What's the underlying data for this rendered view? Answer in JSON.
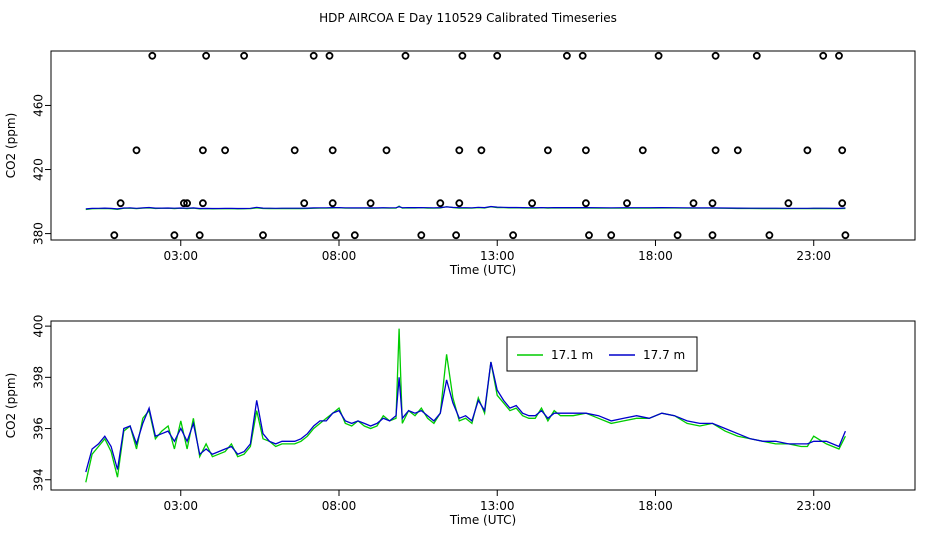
{
  "title": "HDP AIRCOA E  Day 110529  Calibrated Timeseries",
  "chart_data": [
    {
      "type": "scatter",
      "name": "flag-panel",
      "xlabel": "Time (UTC)",
      "ylabel": "CO2 (ppm)",
      "xlim": [
        -1.1,
        26.2
      ],
      "ylim": [
        376,
        494
      ],
      "xticks": [
        3,
        8,
        13,
        18,
        23
      ],
      "xtick_labels": [
        "03:00",
        "08:00",
        "13:00",
        "18:00",
        "23:00"
      ],
      "yticks": [
        380,
        420,
        460
      ],
      "ytick_labels": [
        "380",
        "420",
        "460"
      ],
      "points": [
        [
          0.9,
          379
        ],
        [
          1.1,
          399
        ],
        [
          1.6,
          432
        ],
        [
          2.1,
          491
        ],
        [
          2.8,
          379
        ],
        [
          3.1,
          399
        ],
        [
          3.2,
          399
        ],
        [
          3.6,
          379
        ],
        [
          3.7,
          432
        ],
        [
          3.7,
          399
        ],
        [
          3.8,
          491
        ],
        [
          4.4,
          432
        ],
        [
          5.0,
          491
        ],
        [
          5.6,
          379
        ],
        [
          6.6,
          432
        ],
        [
          6.9,
          399
        ],
        [
          7.2,
          491
        ],
        [
          7.7,
          491
        ],
        [
          7.8,
          432
        ],
        [
          7.8,
          399
        ],
        [
          7.9,
          379
        ],
        [
          8.5,
          379
        ],
        [
          9.0,
          399
        ],
        [
          9.5,
          432
        ],
        [
          10.1,
          491
        ],
        [
          10.6,
          379
        ],
        [
          11.2,
          399
        ],
        [
          11.7,
          379
        ],
        [
          11.8,
          399
        ],
        [
          11.8,
          432
        ],
        [
          11.9,
          491
        ],
        [
          12.5,
          432
        ],
        [
          13.0,
          491
        ],
        [
          13.5,
          379
        ],
        [
          14.1,
          399
        ],
        [
          14.6,
          432
        ],
        [
          15.2,
          491
        ],
        [
          15.7,
          491
        ],
        [
          15.8,
          432
        ],
        [
          15.8,
          399
        ],
        [
          15.9,
          379
        ],
        [
          16.6,
          379
        ],
        [
          17.1,
          399
        ],
        [
          17.6,
          432
        ],
        [
          18.1,
          491
        ],
        [
          18.7,
          379
        ],
        [
          19.2,
          399
        ],
        [
          19.8,
          379
        ],
        [
          19.8,
          399
        ],
        [
          19.9,
          432
        ],
        [
          19.9,
          491
        ],
        [
          20.6,
          432
        ],
        [
          21.2,
          491
        ],
        [
          21.6,
          379
        ],
        [
          22.2,
          399
        ],
        [
          22.8,
          432
        ],
        [
          23.3,
          491
        ],
        [
          23.8,
          491
        ],
        [
          23.9,
          432
        ],
        [
          23.9,
          399
        ],
        [
          24.0,
          379
        ]
      ],
      "line_level": 396
    },
    {
      "type": "line",
      "name": "timeseries-panel",
      "xlabel": "Time (UTC)",
      "ylabel": "CO2 (ppm)",
      "xlim": [
        -1.1,
        26.2
      ],
      "ylim": [
        393.6,
        400.2
      ],
      "xticks": [
        3,
        8,
        13,
        18,
        23
      ],
      "xtick_labels": [
        "03:00",
        "08:00",
        "13:00",
        "18:00",
        "23:00"
      ],
      "yticks": [
        394,
        396,
        398,
        400
      ],
      "ytick_labels": [
        "394",
        "396",
        "398",
        "400"
      ],
      "legend": {
        "position": "top-center",
        "entries": [
          "17.1 m",
          "17.7 m"
        ]
      },
      "series": [
        {
          "name": "17.1 m",
          "color": "#00cc00",
          "x": [
            0.0,
            0.2,
            0.4,
            0.6,
            0.8,
            1.0,
            1.2,
            1.4,
            1.6,
            1.8,
            2.0,
            2.2,
            2.4,
            2.6,
            2.8,
            3.0,
            3.2,
            3.4,
            3.6,
            3.8,
            4.0,
            4.2,
            4.4,
            4.6,
            4.8,
            5.0,
            5.2,
            5.4,
            5.6,
            5.8,
            6.0,
            6.2,
            6.4,
            6.6,
            6.8,
            7.0,
            7.2,
            7.4,
            7.6,
            7.8,
            8.0,
            8.2,
            8.4,
            8.6,
            8.8,
            9.0,
            9.2,
            9.4,
            9.6,
            9.8,
            9.9,
            10.0,
            10.2,
            10.4,
            10.6,
            10.8,
            11.0,
            11.2,
            11.4,
            11.6,
            11.8,
            12.0,
            12.2,
            12.4,
            12.6,
            12.8,
            13.0,
            13.2,
            13.4,
            13.6,
            13.8,
            14.0,
            14.2,
            14.4,
            14.6,
            14.8,
            15.0,
            15.4,
            15.8,
            16.2,
            16.6,
            17.0,
            17.4,
            17.8,
            18.2,
            18.6,
            19.0,
            19.4,
            19.8,
            20.2,
            20.6,
            21.0,
            21.4,
            21.8,
            22.2,
            22.6,
            22.8,
            23.0,
            23.4,
            23.8,
            24.0
          ],
          "values": [
            393.9,
            395.0,
            395.3,
            395.6,
            395.1,
            394.1,
            395.9,
            396.1,
            395.2,
            396.4,
            396.7,
            395.6,
            395.9,
            396.1,
            395.2,
            396.3,
            395.2,
            396.4,
            394.9,
            395.4,
            394.9,
            395.0,
            395.1,
            395.4,
            394.9,
            395.0,
            395.3,
            396.7,
            395.6,
            395.5,
            395.3,
            395.4,
            395.4,
            395.4,
            395.5,
            395.7,
            396.0,
            396.2,
            396.4,
            396.6,
            396.8,
            396.2,
            396.1,
            396.3,
            396.1,
            396.0,
            396.1,
            396.5,
            396.3,
            396.4,
            399.9,
            396.2,
            396.7,
            396.5,
            396.8,
            396.4,
            396.2,
            396.6,
            398.9,
            397.2,
            396.3,
            396.4,
            396.2,
            397.2,
            396.6,
            398.6,
            397.3,
            397.0,
            396.7,
            396.8,
            396.5,
            396.4,
            396.4,
            396.8,
            396.3,
            396.7,
            396.5,
            396.5,
            396.6,
            396.4,
            396.2,
            396.3,
            396.4,
            396.4,
            396.6,
            396.5,
            396.2,
            396.1,
            396.2,
            395.9,
            395.7,
            395.6,
            395.5,
            395.4,
            395.4,
            395.3,
            395.3,
            395.7,
            395.4,
            395.2,
            395.7
          ]
        },
        {
          "name": "17.7 m",
          "color": "#0000cc",
          "x": [
            0.0,
            0.2,
            0.4,
            0.6,
            0.8,
            1.0,
            1.2,
            1.4,
            1.6,
            1.8,
            2.0,
            2.2,
            2.4,
            2.6,
            2.8,
            3.0,
            3.2,
            3.4,
            3.6,
            3.8,
            4.0,
            4.2,
            4.4,
            4.6,
            4.8,
            5.0,
            5.2,
            5.4,
            5.6,
            5.8,
            6.0,
            6.2,
            6.4,
            6.6,
            6.8,
            7.0,
            7.2,
            7.4,
            7.6,
            7.8,
            8.0,
            8.2,
            8.4,
            8.6,
            8.8,
            9.0,
            9.2,
            9.4,
            9.6,
            9.8,
            9.9,
            10.0,
            10.2,
            10.4,
            10.6,
            10.8,
            11.0,
            11.2,
            11.4,
            11.6,
            11.8,
            12.0,
            12.2,
            12.4,
            12.6,
            12.8,
            13.0,
            13.2,
            13.4,
            13.6,
            13.8,
            14.0,
            14.2,
            14.4,
            14.6,
            14.8,
            15.0,
            15.4,
            15.8,
            16.2,
            16.6,
            17.0,
            17.4,
            17.8,
            18.2,
            18.6,
            19.0,
            19.4,
            19.8,
            20.2,
            20.6,
            21.0,
            21.4,
            21.8,
            22.2,
            22.6,
            22.8,
            23.0,
            23.4,
            23.8,
            24.0
          ],
          "values": [
            394.3,
            395.2,
            395.4,
            395.7,
            395.3,
            394.4,
            396.0,
            396.1,
            395.4,
            396.2,
            396.8,
            395.7,
            395.8,
            395.9,
            395.5,
            396.0,
            395.5,
            396.2,
            395.0,
            395.2,
            395.0,
            395.1,
            395.2,
            395.3,
            395.0,
            395.1,
            395.4,
            397.1,
            395.8,
            395.5,
            395.4,
            395.5,
            395.5,
            395.5,
            395.6,
            395.8,
            396.1,
            396.3,
            396.3,
            396.6,
            396.7,
            396.3,
            396.2,
            396.3,
            396.2,
            396.1,
            396.2,
            396.4,
            396.3,
            396.5,
            398.0,
            396.4,
            396.7,
            396.6,
            396.7,
            396.5,
            396.3,
            396.6,
            397.9,
            397.0,
            396.4,
            396.5,
            396.3,
            397.1,
            396.7,
            398.6,
            397.5,
            397.1,
            396.8,
            396.9,
            396.6,
            396.5,
            396.5,
            396.7,
            396.4,
            396.6,
            396.6,
            396.6,
            396.6,
            396.5,
            396.3,
            396.4,
            396.5,
            396.4,
            396.6,
            396.5,
            396.3,
            396.2,
            396.2,
            396.0,
            395.8,
            395.6,
            395.5,
            395.5,
            395.4,
            395.4,
            395.4,
            395.5,
            395.5,
            395.3,
            395.9
          ]
        }
      ]
    }
  ]
}
